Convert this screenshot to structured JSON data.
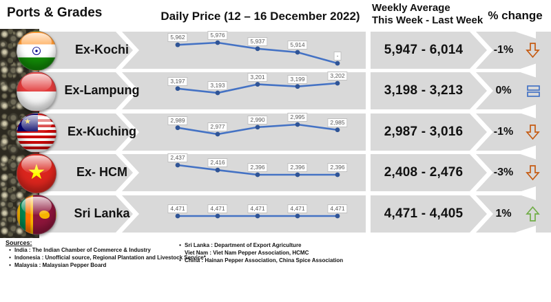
{
  "header": {
    "ports_grades": "Ports & Grades",
    "daily_price": "Daily Price (12 – 16 December 2022)",
    "weekly_avg_line1": "Weekly Average",
    "weekly_avg_line2": "This Week - Last Week",
    "pct_change": "% change"
  },
  "colors": {
    "band": "#D9D9D9",
    "line": "#4472C4",
    "marker": "#2F5496",
    "down": "#C55A11",
    "up": "#70AD47",
    "equal": "#4472C4"
  },
  "rows": [
    {
      "port": "Ex-Kochi",
      "flag": "india",
      "weekly": "5,947 - 6,014",
      "pct": "-1%",
      "trend": "down"
    },
    {
      "port": "Ex-Lampung",
      "flag": "indonesia",
      "weekly": "3,198 - 3,213",
      "pct": "0%",
      "trend": "equal"
    },
    {
      "port": "Ex-Kuching",
      "flag": "malaysia",
      "weekly": "2,987 - 3,016",
      "pct": "-1%",
      "trend": "down"
    },
    {
      "port": "Ex- HCM",
      "flag": "vietnam",
      "weekly": "2,408 - 2,476",
      "pct": "-3%",
      "trend": "down"
    },
    {
      "port": "Sri Lanka",
      "flag": "srilanka",
      "weekly": "4,471 - 4,405",
      "pct": "1%",
      "trend": "up"
    }
  ],
  "chart_data": {
    "type": "line",
    "title": "Daily Price (12 – 16 December 2022)",
    "x": [
      1,
      2,
      3,
      4,
      5
    ],
    "series": [
      {
        "name": "Ex-Kochi",
        "values": [
          5962,
          5976,
          5937,
          5914,
          null
        ],
        "labels": [
          "5,962",
          "5,976",
          "5,937",
          "5,914",
          "-"
        ]
      },
      {
        "name": "Ex-Lampung",
        "values": [
          3197,
          3193,
          3201,
          3199,
          3202
        ],
        "labels": [
          "3,197",
          "3,193",
          "3,201",
          "3,199",
          "3,202"
        ]
      },
      {
        "name": "Ex-Kuching",
        "values": [
          2989,
          2977,
          2990,
          2995,
          2985
        ],
        "labels": [
          "2,989",
          "2,977",
          "2,990",
          "2,995",
          "2,985"
        ]
      },
      {
        "name": "Ex- HCM",
        "values": [
          2437,
          2416,
          2396,
          2396,
          2396
        ],
        "labels": [
          "2,437",
          "2,416",
          "2,396",
          "2,396",
          "2,396"
        ]
      },
      {
        "name": "Sri Lanka",
        "values": [
          4471,
          4471,
          4471,
          4471,
          4471
        ],
        "labels": [
          "4,471",
          "4,471",
          "4,471",
          "4,471",
          "4,471"
        ]
      }
    ]
  },
  "sources": {
    "title": "Sources:",
    "left": [
      {
        "bullet": "•",
        "text": "India : The Indian Chamber of Commerce & Industry"
      },
      {
        "bullet": "•",
        "text": "Indonesia : Unofficial source, Regional Plantation and Livestock Service*"
      },
      {
        "bullet": "•",
        "text": "Malaysia : Malaysian Pepper Board"
      }
    ],
    "right": [
      {
        "bullet": "•",
        "text": "Sri Lanka : Department of Export Agriculture"
      },
      {
        "bullet": "",
        "text": "Viet Nam : Viet Nam Pepper Association, HCMC"
      },
      {
        "bullet": "•",
        "text": "China : Hainan Pepper Association, China Spice Association"
      }
    ]
  }
}
